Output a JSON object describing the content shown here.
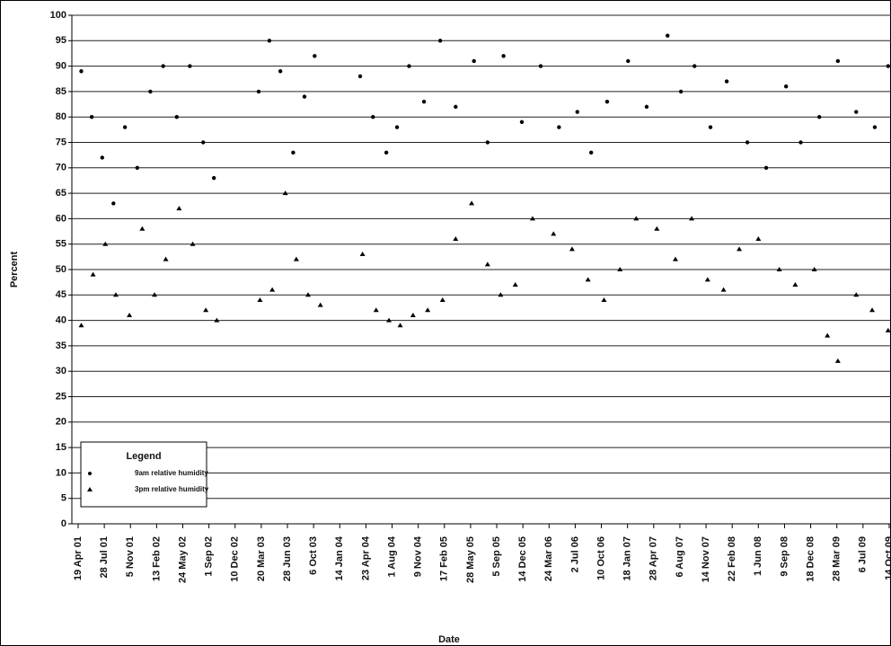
{
  "chart_data": {
    "type": "scatter",
    "x_label": "Date",
    "y_label": "Percent",
    "legend_title": "Legend",
    "legend": "lower-left",
    "grid": true,
    "ylim": [
      0,
      100
    ],
    "yticks": [
      0,
      5,
      10,
      15,
      20,
      25,
      30,
      35,
      40,
      45,
      50,
      55,
      60,
      65,
      70,
      75,
      80,
      85,
      90,
      95,
      100
    ],
    "xlim": [
      "2001-03-26",
      "2009-10-21"
    ],
    "xticks": [
      {
        "value": "2001-04-19",
        "label": "19 Apr 01"
      },
      {
        "value": "2001-07-28",
        "label": "28 Jul 01"
      },
      {
        "value": "2001-11-05",
        "label": "5 Nov 01"
      },
      {
        "value": "2002-02-13",
        "label": "13 Feb 02"
      },
      {
        "value": "2002-05-24",
        "label": "24 May 02"
      },
      {
        "value": "2002-09-01",
        "label": "1 Sep 02"
      },
      {
        "value": "2002-12-10",
        "label": "10 Dec 02"
      },
      {
        "value": "2003-03-20",
        "label": "20 Mar 03"
      },
      {
        "value": "2003-06-28",
        "label": "28 Jun 03"
      },
      {
        "value": "2003-10-06",
        "label": "6 Oct 03"
      },
      {
        "value": "2004-01-14",
        "label": "14 Jan 04"
      },
      {
        "value": "2004-04-23",
        "label": "23 Apr 04"
      },
      {
        "value": "2004-08-01",
        "label": "1 Aug 04"
      },
      {
        "value": "2004-11-09",
        "label": "9 Nov 04"
      },
      {
        "value": "2005-02-17",
        "label": "17 Feb 05"
      },
      {
        "value": "2005-05-28",
        "label": "28 May 05"
      },
      {
        "value": "2005-09-05",
        "label": "5 Sep 05"
      },
      {
        "value": "2005-12-14",
        "label": "14 Dec 05"
      },
      {
        "value": "2006-03-24",
        "label": "24 Mar 06"
      },
      {
        "value": "2006-07-02",
        "label": "2 Jul 06"
      },
      {
        "value": "2006-10-10",
        "label": "10 Oct 06"
      },
      {
        "value": "2007-01-18",
        "label": "18 Jan 07"
      },
      {
        "value": "2007-04-28",
        "label": "28 Apr 07"
      },
      {
        "value": "2007-08-06",
        "label": "6 Aug 07"
      },
      {
        "value": "2007-11-14",
        "label": "14 Nov 07"
      },
      {
        "value": "2008-02-22",
        "label": "22 Feb 08"
      },
      {
        "value": "2008-06-01",
        "label": "1 Jun 08"
      },
      {
        "value": "2008-09-09",
        "label": "9 Sep 08"
      },
      {
        "value": "2008-12-18",
        "label": "18 Dec 08"
      },
      {
        "value": "2009-03-28",
        "label": "28 Mar 09"
      },
      {
        "value": "2009-07-06",
        "label": "6 Jul 09"
      },
      {
        "value": "2009-10-14",
        "label": "14 Oct 09"
      }
    ],
    "series": [
      {
        "name": "9am relative humidity",
        "color": "#000000",
        "marker": "circle",
        "x": [
          "2001-05-01",
          "2001-06-10",
          "2001-07-20",
          "2001-09-01",
          "2001-10-15",
          "2001-12-01",
          "2002-01-20",
          "2002-03-10",
          "2002-05-01",
          "2002-06-20",
          "2002-08-10",
          "2002-09-20",
          "2003-03-10",
          "2003-04-20",
          "2003-06-01",
          "2003-07-20",
          "2003-09-01",
          "2003-10-10",
          "2004-04-01",
          "2004-05-20",
          "2004-07-10",
          "2004-08-20",
          "2004-10-05",
          "2004-12-01",
          "2005-02-01",
          "2005-04-01",
          "2005-06-10",
          "2005-08-01",
          "2005-10-01",
          "2005-12-10",
          "2006-02-20",
          "2006-05-01",
          "2006-07-10",
          "2006-09-01",
          "2006-11-01",
          "2007-01-20",
          "2007-04-01",
          "2007-06-20",
          "2007-08-10",
          "2007-10-01",
          "2007-12-01",
          "2008-02-01",
          "2008-04-20",
          "2008-07-01",
          "2008-09-15",
          "2008-11-10",
          "2009-01-20",
          "2009-04-01",
          "2009-06-10",
          "2009-08-20",
          "2009-10-10"
        ],
        "values": [
          89,
          80,
          72,
          63,
          78,
          70,
          85,
          90,
          80,
          90,
          75,
          68,
          85,
          95,
          89,
          73,
          84,
          92,
          88,
          80,
          73,
          78,
          90,
          83,
          95,
          82,
          91,
          75,
          92,
          79,
          90,
          78,
          81,
          73,
          83,
          91,
          82,
          96,
          85,
          90,
          78,
          87,
          75,
          70,
          86,
          75,
          80,
          91,
          81,
          78,
          90
        ]
      },
      {
        "name": "3pm relative humidity",
        "color": "#000000",
        "marker": "triangle",
        "x": [
          "2001-05-01",
          "2001-06-15",
          "2001-08-01",
          "2001-09-10",
          "2001-11-01",
          "2001-12-20",
          "2002-02-05",
          "2002-03-20",
          "2002-05-10",
          "2002-07-01",
          "2002-08-20",
          "2002-10-01",
          "2003-03-15",
          "2003-05-01",
          "2003-06-20",
          "2003-08-01",
          "2003-09-15",
          "2003-11-01",
          "2004-04-10",
          "2004-06-01",
          "2004-07-20",
          "2004-09-01",
          "2004-10-20",
          "2004-12-15",
          "2005-02-10",
          "2005-04-01",
          "2005-06-01",
          "2005-08-01",
          "2005-09-20",
          "2005-11-15",
          "2006-01-20",
          "2006-04-10",
          "2006-06-20",
          "2006-08-20",
          "2006-10-20",
          "2006-12-20",
          "2007-02-20",
          "2007-05-10",
          "2007-07-20",
          "2007-09-20",
          "2007-11-20",
          "2008-01-20",
          "2008-03-20",
          "2008-06-01",
          "2008-08-20",
          "2008-10-20",
          "2009-01-01",
          "2009-02-20",
          "2009-04-01",
          "2009-06-10",
          "2009-08-10",
          "2009-10-10"
        ],
        "values": [
          39,
          49,
          55,
          45,
          41,
          58,
          45,
          52,
          62,
          55,
          42,
          40,
          44,
          46,
          65,
          52,
          45,
          43,
          53,
          42,
          40,
          39,
          41,
          42,
          44,
          56,
          63,
          51,
          45,
          47,
          60,
          57,
          54,
          48,
          44,
          50,
          60,
          58,
          52,
          60,
          48,
          46,
          54,
          56,
          50,
          47,
          50,
          37,
          32,
          45,
          42,
          38
        ]
      }
    ]
  }
}
